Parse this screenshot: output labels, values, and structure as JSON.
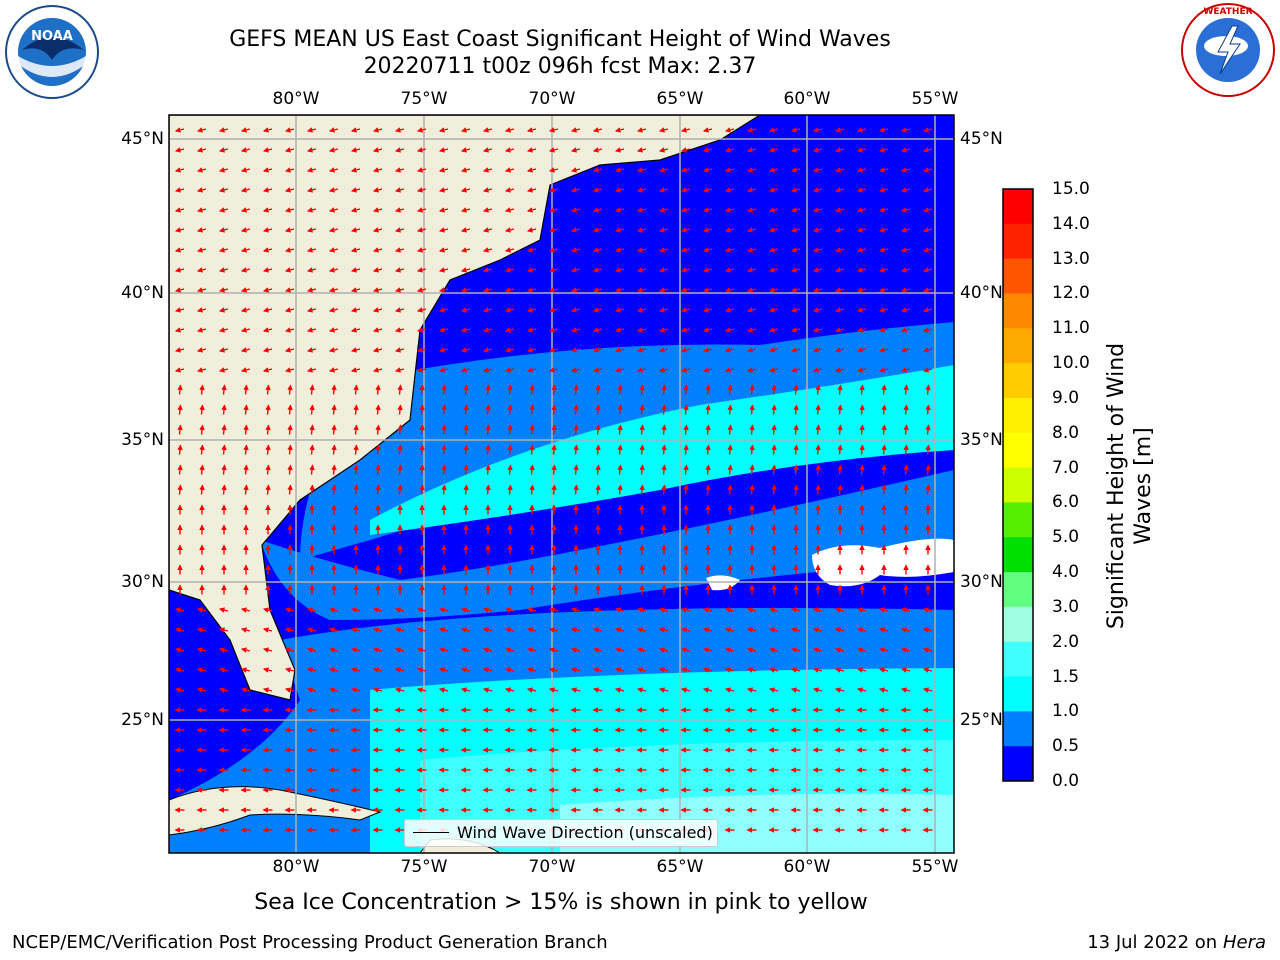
{
  "title_line1": "GEFS MEAN US East Coast Significant Height of Wind Waves",
  "title_line2": "20220711 t00z 096h fcst   Max: 2.37",
  "subtitle": "Sea Ice Concentration > 15% is shown in pink to yellow",
  "footer_left": "NCEP/EMC/Verification Post Processing Product Generation Branch",
  "footer_date": "13 Jul 2022 on ",
  "footer_machine": "Hera",
  "legend_label": "Wind Wave Direction (unscaled)",
  "lon_ticks": [
    "80°W",
    "75°W",
    "70°W",
    "65°W",
    "60°W",
    "55°W"
  ],
  "lat_ticks": [
    "45°N",
    "40°N",
    "35°N",
    "30°N",
    "25°N"
  ],
  "colorbar": {
    "label": "Significant Height of Wind Waves [m]",
    "ticks": [
      "15.0",
      "14.0",
      "13.0",
      "12.0",
      "11.0",
      "10.0",
      "9.0",
      "8.0",
      "7.0",
      "6.0",
      "5.0",
      "4.0",
      "3.0",
      "2.0",
      "1.5",
      "1.0",
      "0.5",
      "0.0"
    ],
    "colors": [
      "#0000ff",
      "#0080ff",
      "#00ffff",
      "#40ffff",
      "#90ffff",
      "#a0ffe0",
      "#60ff80",
      "#00e000",
      "#55ee00",
      "#aaee00",
      "#ccff00",
      "#ffff00",
      "#ffee00",
      "#ffcc00",
      "#ffaa00",
      "#ff8800",
      "#ff5500",
      "#ff2200",
      "#ff0000"
    ]
  },
  "logos": {
    "left": "NOAA",
    "right": "NATIONAL WEATHER SERVICE"
  }
}
